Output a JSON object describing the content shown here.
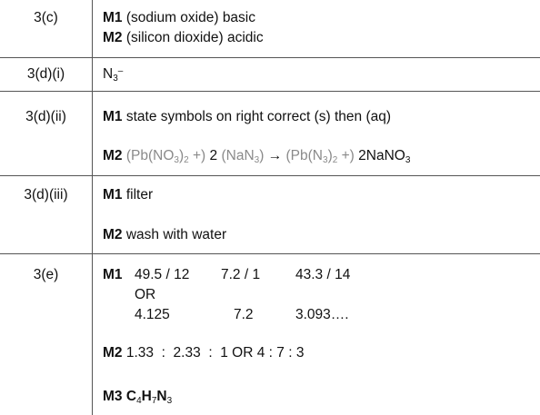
{
  "rows": [
    {
      "question": "3(c)",
      "m1_label": "M1",
      "m1_text": "(sodium oxide) basic",
      "m2_label": "M2",
      "m2_text": "(silicon dioxide) acidic"
    },
    {
      "question": "3(d)(i)",
      "answer_base": "N",
      "answer_sub": "3",
      "answer_sup": "–"
    },
    {
      "question": "3(d)(ii)",
      "m1_label": "M1",
      "m1_text": "state symbols on right correct (s) then (aq)",
      "m2_label": "M2",
      "eq": {
        "p1": "(Pb(NO",
        "s1": "3",
        "p2": ")",
        "s2": "2",
        "p3": " +)",
        "coef1": "2",
        "p4": "(NaN",
        "s3": "3",
        "p5": ")",
        "arrow": "→",
        "p6": "(Pb(N",
        "s4": "3",
        "p7": ")",
        "s5": "2",
        "p8": " +)",
        "prod_a": "2NaNO",
        "s6": "3"
      }
    },
    {
      "question": "3(d)(iii)",
      "m1_label": "M1",
      "m1_text": "filter",
      "m2_label": "M2",
      "m2_text": "wash with water"
    },
    {
      "question": "3(e)",
      "m1_label": "M1",
      "r1": [
        "49.5 / 12",
        "7.2 / 1",
        "43.3 / 14"
      ],
      "or_text": "OR",
      "r2": [
        "4.125",
        "7.2",
        "3.093…."
      ],
      "m2_label": "M2",
      "m2_text": "1.33  :  2.33  :  1 OR 4 : 7 : 3",
      "m3_label": "M3",
      "formula": {
        "c": "C",
        "cs": "4",
        "h": "H",
        "hs": "7",
        "n": "N",
        "ns": "3"
      }
    }
  ]
}
